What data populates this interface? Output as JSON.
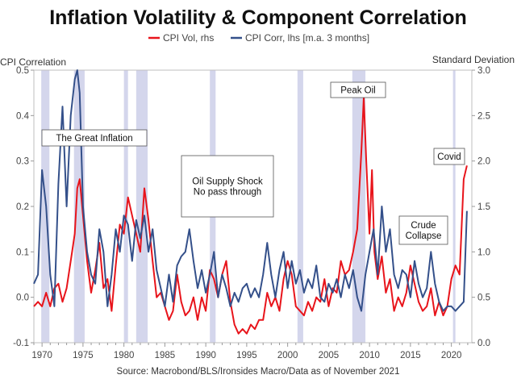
{
  "chart_data": {
    "type": "line",
    "title": "Inflation Volatility & Component Correlation",
    "source": "Source: Macrobond/BLS/Ironsides Macro/Data as of November 2021",
    "left_axis": {
      "label": "CPI Correlation",
      "min": -0.1,
      "max": 0.5,
      "ticks": [
        "-0.1",
        "0.0",
        "0.1",
        "0.2",
        "0.3",
        "0.4",
        "0.5"
      ]
    },
    "right_axis": {
      "label": "Standard Deviation",
      "min": 0.0,
      "max": 3.0,
      "ticks": [
        "0.0",
        "0.5",
        "1.0",
        "1.5",
        "2.0",
        "2.5",
        "3.0"
      ]
    },
    "x_axis": {
      "min": 1969,
      "max": 2022.5,
      "ticks": [
        "1970",
        "1975",
        "1980",
        "1985",
        "1990",
        "1995",
        "2000",
        "2005",
        "2010",
        "2015",
        "2020"
      ]
    },
    "recessions": [
      [
        1969.9,
        1970.9
      ],
      [
        1973.9,
        1975.2
      ],
      [
        1980.0,
        1980.5
      ],
      [
        1981.5,
        1982.9
      ],
      [
        1990.5,
        1991.2
      ],
      [
        2001.2,
        2001.9
      ],
      [
        2007.9,
        2009.5
      ],
      [
        2020.2,
        2020.4
      ]
    ],
    "series": [
      {
        "name": "CPI Vol, rhs",
        "axis": "right",
        "color": "#e8141b",
        "points": [
          [
            1969.0,
            0.4
          ],
          [
            1969.5,
            0.45
          ],
          [
            1970.0,
            0.4
          ],
          [
            1970.5,
            0.55
          ],
          [
            1971.0,
            0.4
          ],
          [
            1971.5,
            0.6
          ],
          [
            1972.0,
            0.65
          ],
          [
            1972.5,
            0.45
          ],
          [
            1973.0,
            0.6
          ],
          [
            1973.5,
            0.9
          ],
          [
            1974.0,
            1.2
          ],
          [
            1974.3,
            1.7
          ],
          [
            1974.6,
            1.8
          ],
          [
            1975.0,
            1.4
          ],
          [
            1975.5,
            0.9
          ],
          [
            1976.0,
            0.55
          ],
          [
            1976.5,
            0.8
          ],
          [
            1977.0,
            1.1
          ],
          [
            1977.5,
            0.6
          ],
          [
            1978.0,
            0.7
          ],
          [
            1978.5,
            0.35
          ],
          [
            1979.0,
            0.85
          ],
          [
            1979.5,
            1.3
          ],
          [
            1980.0,
            1.2
          ],
          [
            1980.5,
            1.6
          ],
          [
            1981.0,
            1.4
          ],
          [
            1981.5,
            1.2
          ],
          [
            1982.0,
            1.0
          ],
          [
            1982.5,
            1.7
          ],
          [
            1983.0,
            1.35
          ],
          [
            1983.5,
            0.9
          ],
          [
            1984.0,
            0.5
          ],
          [
            1984.5,
            0.55
          ],
          [
            1985.0,
            0.4
          ],
          [
            1985.5,
            0.25
          ],
          [
            1986.0,
            0.35
          ],
          [
            1986.5,
            0.75
          ],
          [
            1987.0,
            0.45
          ],
          [
            1987.5,
            0.3
          ],
          [
            1988.0,
            0.35
          ],
          [
            1988.5,
            0.5
          ],
          [
            1989.0,
            0.25
          ],
          [
            1989.5,
            0.5
          ],
          [
            1990.0,
            0.35
          ],
          [
            1990.5,
            0.8
          ],
          [
            1991.0,
            0.7
          ],
          [
            1991.5,
            0.5
          ],
          [
            1992.0,
            0.75
          ],
          [
            1992.5,
            0.9
          ],
          [
            1993.0,
            0.45
          ],
          [
            1993.5,
            0.2
          ],
          [
            1994.0,
            0.1
          ],
          [
            1994.5,
            0.15
          ],
          [
            1995.0,
            0.1
          ],
          [
            1995.5,
            0.2
          ],
          [
            1996.0,
            0.15
          ],
          [
            1996.5,
            0.25
          ],
          [
            1997.0,
            0.25
          ],
          [
            1997.5,
            0.55
          ],
          [
            1998.0,
            0.4
          ],
          [
            1998.5,
            0.5
          ],
          [
            1999.0,
            0.35
          ],
          [
            1999.5,
            0.7
          ],
          [
            2000.0,
            0.9
          ],
          [
            2000.5,
            0.75
          ],
          [
            2001.0,
            0.4
          ],
          [
            2001.5,
            0.35
          ],
          [
            2002.0,
            0.3
          ],
          [
            2002.5,
            0.45
          ],
          [
            2003.0,
            0.35
          ],
          [
            2003.5,
            0.5
          ],
          [
            2004.0,
            0.45
          ],
          [
            2004.5,
            0.7
          ],
          [
            2005.0,
            0.4
          ],
          [
            2005.5,
            0.6
          ],
          [
            2006.0,
            0.55
          ],
          [
            2006.5,
            0.9
          ],
          [
            2007.0,
            0.75
          ],
          [
            2007.5,
            0.8
          ],
          [
            2008.0,
            1.0
          ],
          [
            2008.5,
            1.25
          ],
          [
            2009.0,
            2.1
          ],
          [
            2009.3,
            2.7
          ],
          [
            2009.6,
            2.0
          ],
          [
            2010.0,
            1.2
          ],
          [
            2010.3,
            1.9
          ],
          [
            2010.6,
            1.0
          ],
          [
            2011.0,
            0.7
          ],
          [
            2011.5,
            0.95
          ],
          [
            2012.0,
            0.55
          ],
          [
            2012.5,
            0.7
          ],
          [
            2013.0,
            0.35
          ],
          [
            2013.5,
            0.5
          ],
          [
            2014.0,
            0.4
          ],
          [
            2014.5,
            0.55
          ],
          [
            2015.0,
            0.85
          ],
          [
            2015.5,
            0.65
          ],
          [
            2016.0,
            0.45
          ],
          [
            2016.5,
            0.35
          ],
          [
            2017.0,
            0.4
          ],
          [
            2017.5,
            0.6
          ],
          [
            2018.0,
            0.3
          ],
          [
            2018.5,
            0.45
          ],
          [
            2019.0,
            0.3
          ],
          [
            2019.5,
            0.4
          ],
          [
            2020.0,
            0.7
          ],
          [
            2020.5,
            0.85
          ],
          [
            2021.0,
            0.75
          ],
          [
            2021.5,
            1.8
          ],
          [
            2021.9,
            1.95
          ]
        ]
      },
      {
        "name": "CPI Corr, lhs [m.a. 3 months]",
        "axis": "left",
        "color": "#34508a",
        "points": [
          [
            1969.0,
            0.03
          ],
          [
            1969.5,
            0.05
          ],
          [
            1970.0,
            0.28
          ],
          [
            1970.5,
            0.2
          ],
          [
            1971.0,
            0.05
          ],
          [
            1971.5,
            -0.02
          ],
          [
            1972.0,
            0.25
          ],
          [
            1972.5,
            0.42
          ],
          [
            1973.0,
            0.2
          ],
          [
            1973.5,
            0.4
          ],
          [
            1974.0,
            0.48
          ],
          [
            1974.3,
            0.5
          ],
          [
            1974.6,
            0.45
          ],
          [
            1975.0,
            0.2
          ],
          [
            1975.5,
            0.1
          ],
          [
            1976.0,
            0.05
          ],
          [
            1976.5,
            0.03
          ],
          [
            1977.0,
            0.15
          ],
          [
            1977.5,
            0.1
          ],
          [
            1978.0,
            -0.02
          ],
          [
            1978.5,
            0.05
          ],
          [
            1979.0,
            0.15
          ],
          [
            1979.5,
            0.1
          ],
          [
            1980.0,
            0.18
          ],
          [
            1980.5,
            0.16
          ],
          [
            1981.0,
            0.08
          ],
          [
            1981.5,
            0.17
          ],
          [
            1982.0,
            0.13
          ],
          [
            1982.5,
            0.18
          ],
          [
            1983.0,
            0.1
          ],
          [
            1983.5,
            0.15
          ],
          [
            1984.0,
            0.06
          ],
          [
            1984.5,
            0.02
          ],
          [
            1985.0,
            -0.02
          ],
          [
            1985.5,
            0.05
          ],
          [
            1986.0,
            -0.01
          ],
          [
            1986.5,
            0.07
          ],
          [
            1987.0,
            0.09
          ],
          [
            1987.5,
            0.1
          ],
          [
            1988.0,
            0.15
          ],
          [
            1988.5,
            0.08
          ],
          [
            1989.0,
            0.02
          ],
          [
            1989.5,
            0.06
          ],
          [
            1990.0,
            0.01
          ],
          [
            1990.5,
            0.05
          ],
          [
            1991.0,
            0.1
          ],
          [
            1991.5,
            0.0
          ],
          [
            1992.0,
            0.05
          ],
          [
            1992.5,
            0.02
          ],
          [
            1993.0,
            -0.02
          ],
          [
            1993.5,
            0.01
          ],
          [
            1994.0,
            -0.01
          ],
          [
            1994.5,
            0.02
          ],
          [
            1995.0,
            0.03
          ],
          [
            1995.5,
            0.0
          ],
          [
            1996.0,
            0.02
          ],
          [
            1996.5,
            0.0
          ],
          [
            1997.0,
            0.05
          ],
          [
            1997.5,
            0.12
          ],
          [
            1998.0,
            0.05
          ],
          [
            1998.5,
            0.0
          ],
          [
            1999.0,
            0.06
          ],
          [
            1999.5,
            0.1
          ],
          [
            2000.0,
            0.02
          ],
          [
            2000.5,
            0.08
          ],
          [
            2001.0,
            0.03
          ],
          [
            2001.5,
            0.06
          ],
          [
            2002.0,
            0.01
          ],
          [
            2002.5,
            0.04
          ],
          [
            2003.0,
            0.02
          ],
          [
            2003.5,
            0.07
          ],
          [
            2004.0,
            0.0
          ],
          [
            2004.5,
            -0.01
          ],
          [
            2005.0,
            0.03
          ],
          [
            2005.5,
            0.01
          ],
          [
            2006.0,
            0.04
          ],
          [
            2006.5,
            0.0
          ],
          [
            2007.0,
            0.05
          ],
          [
            2007.5,
            0.02
          ],
          [
            2008.0,
            0.06
          ],
          [
            2008.5,
            0.0
          ],
          [
            2009.0,
            -0.03
          ],
          [
            2009.5,
            0.05
          ],
          [
            2010.0,
            0.1
          ],
          [
            2010.5,
            0.15
          ],
          [
            2011.0,
            0.05
          ],
          [
            2011.5,
            0.2
          ],
          [
            2012.0,
            0.1
          ],
          [
            2012.5,
            0.15
          ],
          [
            2013.0,
            0.05
          ],
          [
            2013.5,
            0.02
          ],
          [
            2014.0,
            0.06
          ],
          [
            2014.5,
            0.05
          ],
          [
            2015.0,
            0.0
          ],
          [
            2015.5,
            0.08
          ],
          [
            2016.0,
            0.03
          ],
          [
            2016.5,
            0.0
          ],
          [
            2017.0,
            0.02
          ],
          [
            2017.5,
            0.1
          ],
          [
            2018.0,
            0.03
          ],
          [
            2018.5,
            -0.01
          ],
          [
            2019.0,
            -0.03
          ],
          [
            2019.5,
            -0.02
          ],
          [
            2020.0,
            -0.02
          ],
          [
            2020.5,
            -0.03
          ],
          [
            2021.0,
            -0.02
          ],
          [
            2021.5,
            -0.01
          ],
          [
            2021.9,
            0.19
          ]
        ]
      }
    ],
    "annotations": [
      {
        "text": [
          "The Great Inflation"
        ]
      },
      {
        "text": [
          "Oil Supply Shock",
          "No pass through"
        ]
      },
      {
        "text": [
          "Peak Oil"
        ]
      },
      {
        "text": [
          "Crude",
          "Collapse"
        ]
      },
      {
        "text": [
          "Covid"
        ]
      }
    ]
  },
  "colors": {
    "recession_band": "#d4d6ec",
    "frame": "#bfbfbf",
    "annotation_border": "#555555"
  }
}
